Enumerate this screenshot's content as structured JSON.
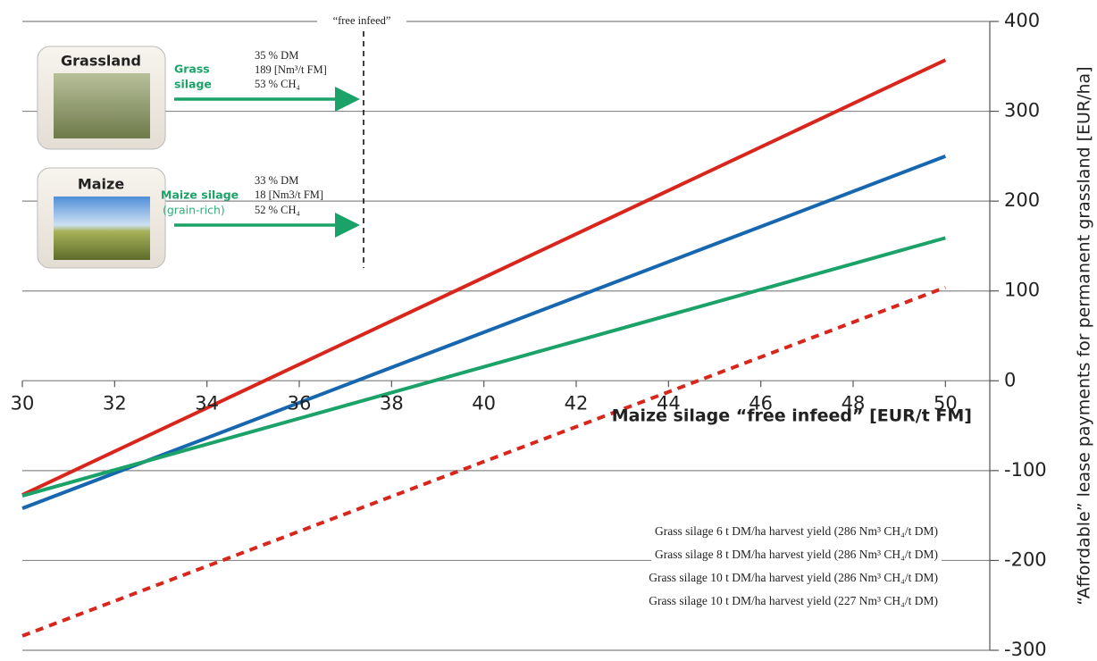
{
  "chart_data": {
    "type": "line",
    "x": [
      30,
      50
    ],
    "xlim": [
      30,
      51
    ],
    "xticks": [
      30,
      32,
      34,
      36,
      38,
      40,
      42,
      44,
      46,
      48,
      50
    ],
    "ylim": [
      -300,
      400
    ],
    "yticks": [
      -300,
      -200,
      -100,
      0,
      100,
      200,
      300,
      400
    ],
    "x_label": "Maize silage “free infeed” [EUR/t FM]",
    "y_label": "“Affordable” lease payments for permanent grassland [EUR/ha]",
    "grid": true,
    "legend": "lower right",
    "series": [
      {
        "name": "Grass silage 6 t DM/ha harvest yield (286 Nm³ CH₄/t DM)",
        "color": "#d9261c",
        "style": "solid",
        "values": [
          -127,
          357
        ]
      },
      {
        "name": "Grass silage 8 t DM/ha harvest yield (286 Nm³ CH₄/t DM)",
        "color": "#1767b0",
        "style": "solid",
        "values": [
          -142,
          250
        ]
      },
      {
        "name": "Grass silage 10 t DM/ha harvest yield (286 Nm³ CH₄/t DM)",
        "color": "#1aa268",
        "style": "solid",
        "values": [
          -128,
          159
        ]
      },
      {
        "name": "Grass silage 10 t DM/ha harvest yield (227 Nm³ CH₄/t DM)",
        "color": "#d9261c",
        "style": "dashed",
        "values": [
          -284,
          104
        ]
      }
    ],
    "annotations": {
      "free_infeed": "“free infeed”",
      "grassland": {
        "title": "Grassland",
        "crop": [
          "Grass",
          "silage"
        ],
        "facts": [
          "35 % DM",
          "189 [Nm³/t FM]",
          "53 % CH₄"
        ]
      },
      "maize": {
        "title": "Maize",
        "crop": [
          "Maize silage",
          "(grain-rich)"
        ],
        "facts": [
          "33 % DM",
          "18 [Nm3/t FM]",
          "52 % CH₄"
        ]
      }
    }
  }
}
